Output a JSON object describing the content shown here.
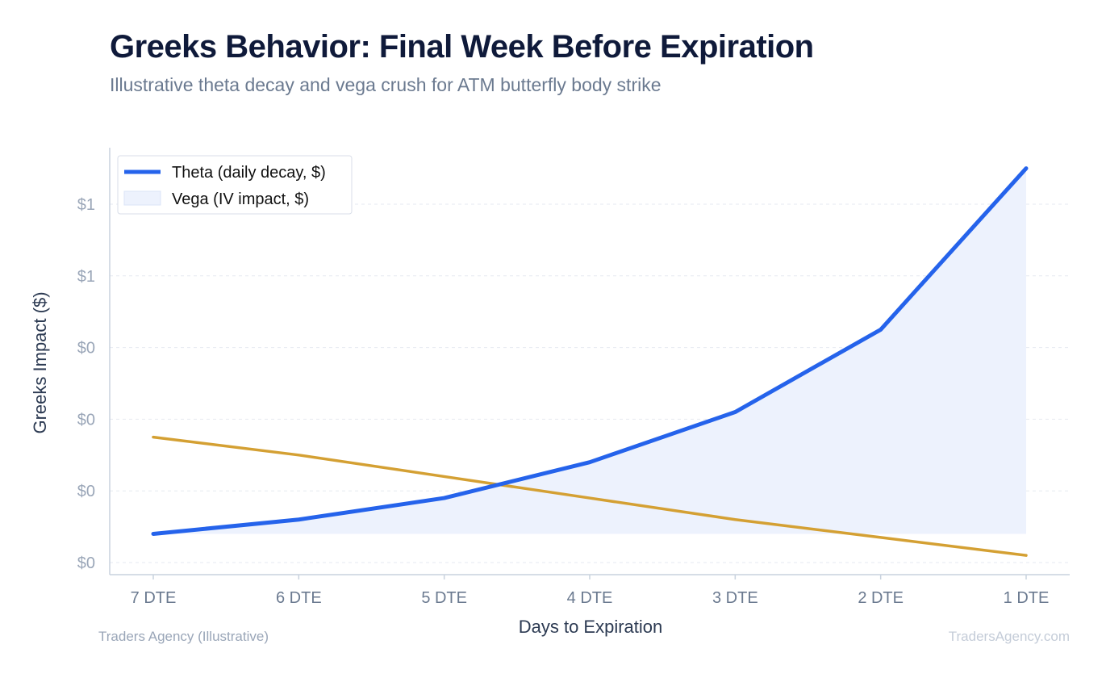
{
  "title": "Greeks Behavior: Final Week Before Expiration",
  "subtitle": "Illustrative theta decay and vega crush for ATM butterfly body strike",
  "footer": {
    "source": "Traders Agency (Illustrative)",
    "site": "TradersAgency.com"
  },
  "chart_data": {
    "type": "line",
    "categories": [
      "7 DTE",
      "6 DTE",
      "5 DTE",
      "4 DTE",
      "3 DTE",
      "2 DTE",
      "1 DTE"
    ],
    "xlabel": "Days to Expiration",
    "ylabel": "Greeks Impact ($)",
    "ylim": [
      0,
      1.17
    ],
    "yticks": [
      0.0,
      0.2,
      0.4,
      0.6,
      0.8,
      1.0
    ],
    "ytick_labels": [
      "$0",
      "$0",
      "$0",
      "$0",
      "$1",
      "$1"
    ],
    "grid": true,
    "legend_position": "top-left",
    "series": [
      {
        "name": "Theta (daily decay, $)",
        "style": "line with filled area",
        "color": "#2563eb",
        "fill": "#edf2fd",
        "values": [
          0.08,
          0.12,
          0.18,
          0.28,
          0.42,
          0.65,
          1.1
        ]
      },
      {
        "name": "Vega (IV impact, $)",
        "style": "line",
        "color": "#d4a033",
        "values": [
          0.35,
          0.3,
          0.24,
          0.18,
          0.12,
          0.07,
          0.02
        ]
      }
    ]
  }
}
